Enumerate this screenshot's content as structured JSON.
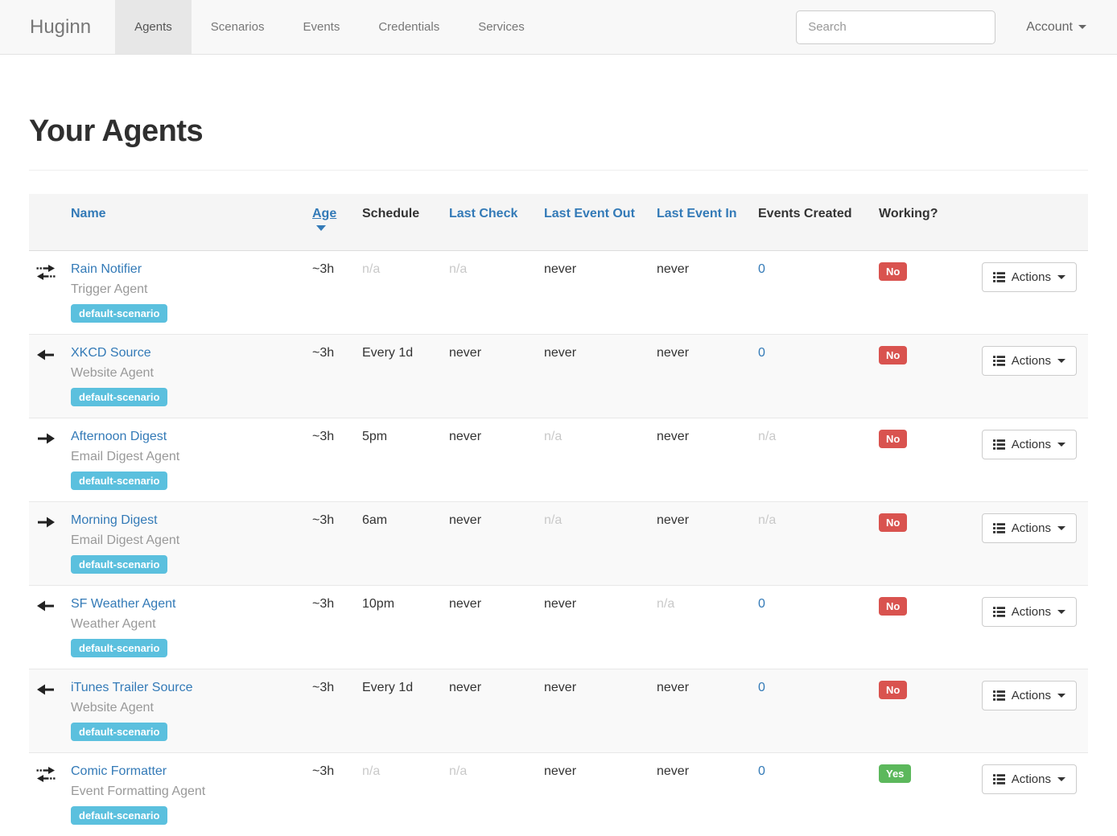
{
  "navbar": {
    "brand": "Huginn",
    "items": [
      {
        "label": "Agents"
      },
      {
        "label": "Scenarios"
      },
      {
        "label": "Events"
      },
      {
        "label": "Credentials"
      },
      {
        "label": "Services"
      }
    ],
    "search": {
      "placeholder": "Search"
    },
    "account": {
      "label": "Account"
    }
  },
  "page": {
    "title": "Your Agents"
  },
  "icons": {
    "arrow_right": "emits-events-arrow",
    "arrow_left": "receives-events-arrow",
    "arrow_both": "receives-and-emits-events-arrows",
    "list": "actions-list-glyph",
    "caret_down": "dropdown-caret",
    "sort_desc": "age-sort-descending-caret"
  },
  "colors": {
    "link_blue": "#337ab7",
    "badge_info_bg": "#5bc0de",
    "working_no_bg": "#d9534f",
    "working_yes_bg": "#5cb85c",
    "muted_text": "#c9c9c9",
    "stripe_bg": "#f9f9f9",
    "navbar_bg": "#f8f8f8",
    "navbar_active_bg": "#e7e7e7"
  },
  "table": {
    "headers": {
      "name": "Name",
      "age": "Age",
      "schedule": "Schedule",
      "last_check": "Last Check",
      "last_event_out": "Last Event Out",
      "last_event_in": "Last Event In",
      "events_created": "Events Created",
      "working": "Working?"
    },
    "actions_label": "Actions",
    "rows": [
      {
        "icon": "arrow-both",
        "name": "Rain Notifier",
        "type": "Trigger Agent",
        "badge": "default-scenario",
        "age": "~3h",
        "schedule": "n/a",
        "schedule_muted": true,
        "last_check": "n/a",
        "last_check_muted": true,
        "last_event_out": "never",
        "last_event_out_muted": false,
        "last_event_in": "never",
        "last_event_in_muted": false,
        "events_created": "0",
        "events_created_link": true,
        "events_created_muted": false,
        "working": "No",
        "working_status": "danger"
      },
      {
        "icon": "arrow-left",
        "name": "XKCD Source",
        "type": "Website Agent",
        "badge": "default-scenario",
        "age": "~3h",
        "schedule": "Every 1d",
        "schedule_muted": false,
        "last_check": "never",
        "last_check_muted": false,
        "last_event_out": "never",
        "last_event_out_muted": false,
        "last_event_in": "never",
        "last_event_in_muted": false,
        "events_created": "0",
        "events_created_link": true,
        "events_created_muted": false,
        "working": "No",
        "working_status": "danger"
      },
      {
        "icon": "arrow-right",
        "name": "Afternoon Digest",
        "type": "Email Digest Agent",
        "badge": "default-scenario",
        "age": "~3h",
        "schedule": "5pm",
        "schedule_muted": false,
        "last_check": "never",
        "last_check_muted": false,
        "last_event_out": "n/a",
        "last_event_out_muted": true,
        "last_event_in": "never",
        "last_event_in_muted": false,
        "events_created": "n/a",
        "events_created_link": false,
        "events_created_muted": true,
        "working": "No",
        "working_status": "danger"
      },
      {
        "icon": "arrow-right",
        "name": "Morning Digest",
        "type": "Email Digest Agent",
        "badge": "default-scenario",
        "age": "~3h",
        "schedule": "6am",
        "schedule_muted": false,
        "last_check": "never",
        "last_check_muted": false,
        "last_event_out": "n/a",
        "last_event_out_muted": true,
        "last_event_in": "never",
        "last_event_in_muted": false,
        "events_created": "n/a",
        "events_created_link": false,
        "events_created_muted": true,
        "working": "No",
        "working_status": "danger"
      },
      {
        "icon": "arrow-left",
        "name": "SF Weather Agent",
        "type": "Weather Agent",
        "badge": "default-scenario",
        "age": "~3h",
        "schedule": "10pm",
        "schedule_muted": false,
        "last_check": "never",
        "last_check_muted": false,
        "last_event_out": "never",
        "last_event_out_muted": false,
        "last_event_in": "n/a",
        "last_event_in_muted": true,
        "events_created": "0",
        "events_created_link": true,
        "events_created_muted": false,
        "working": "No",
        "working_status": "danger"
      },
      {
        "icon": "arrow-left",
        "name": "iTunes Trailer Source",
        "type": "Website Agent",
        "badge": "default-scenario",
        "age": "~3h",
        "schedule": "Every 1d",
        "schedule_muted": false,
        "last_check": "never",
        "last_check_muted": false,
        "last_event_out": "never",
        "last_event_out_muted": false,
        "last_event_in": "never",
        "last_event_in_muted": false,
        "events_created": "0",
        "events_created_link": true,
        "events_created_muted": false,
        "working": "No",
        "working_status": "danger"
      },
      {
        "icon": "arrow-both",
        "name": "Comic Formatter",
        "type": "Event Formatting Agent",
        "badge": "default-scenario",
        "age": "~3h",
        "schedule": "n/a",
        "schedule_muted": true,
        "last_check": "n/a",
        "last_check_muted": true,
        "last_event_out": "never",
        "last_event_out_muted": false,
        "last_event_in": "never",
        "last_event_in_muted": false,
        "events_created": "0",
        "events_created_link": true,
        "events_created_muted": false,
        "working": "Yes",
        "working_status": "success"
      }
    ]
  }
}
